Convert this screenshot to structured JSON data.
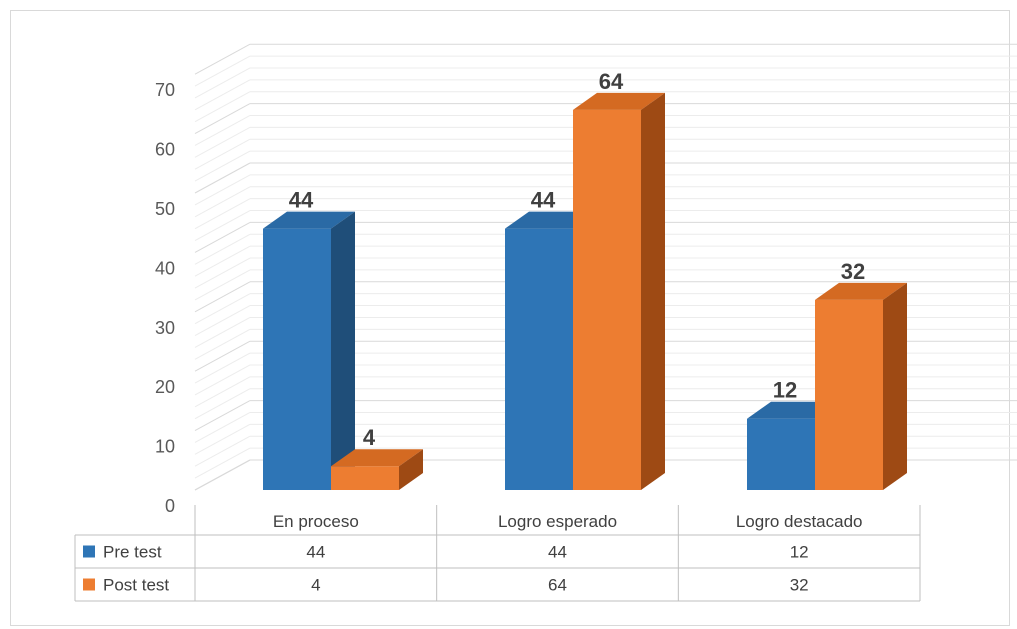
{
  "chart_data": {
    "type": "bar",
    "categories": [
      "En proceso",
      "Logro esperado",
      "Logro destacado"
    ],
    "series": [
      {
        "name": "Pre test",
        "values": [
          44,
          44,
          12
        ],
        "color": "#2e75b6",
        "side_color": "#1f4e79",
        "top_color": "#2a6aa5"
      },
      {
        "name": "Post test",
        "values": [
          4,
          64,
          32
        ],
        "color": "#ed7d31",
        "side_color": "#9e4a14",
        "top_color": "#d46a22"
      }
    ],
    "ylim": [
      0,
      70
    ],
    "yticks": [
      "0",
      "10",
      "20",
      "30",
      "40",
      "50",
      "60",
      "70"
    ],
    "grid": true,
    "three_d": true,
    "data_labels": true,
    "legend": "data-table"
  }
}
